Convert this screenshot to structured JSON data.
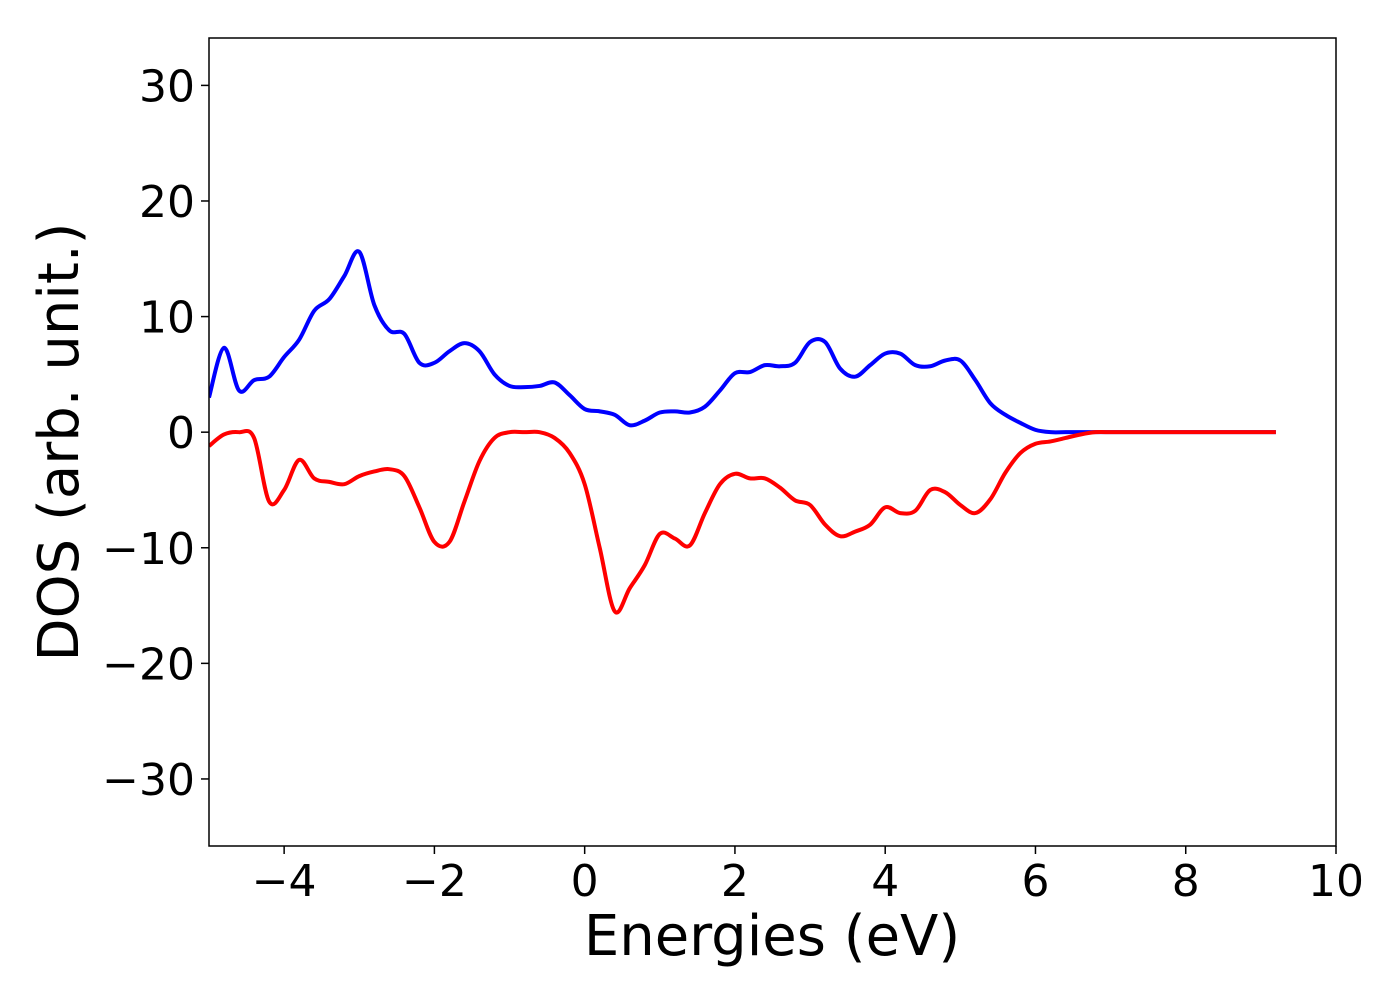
{
  "chart_data": {
    "type": "line",
    "x_label": "Energies (eV)",
    "y_label": "DOS (arb. unit.)",
    "x": [
      -5.0,
      -4.8,
      -4.6,
      -4.4,
      -4.2,
      -4.0,
      -3.8,
      -3.6,
      -3.4,
      -3.2,
      -3.0,
      -2.8,
      -2.6,
      -2.4,
      -2.2,
      -2.0,
      -1.8,
      -1.6,
      -1.4,
      -1.2,
      -1.0,
      -0.8,
      -0.6,
      -0.4,
      -0.2,
      0.0,
      0.2,
      0.4,
      0.6,
      0.8,
      1.0,
      1.2,
      1.4,
      1.6,
      1.8,
      2.0,
      2.2,
      2.4,
      2.6,
      2.8,
      3.0,
      3.2,
      3.4,
      3.6,
      3.8,
      4.0,
      4.2,
      4.4,
      4.6,
      4.8,
      5.0,
      5.2,
      5.4,
      5.6,
      5.8,
      6.0,
      6.2,
      6.4,
      6.6,
      6.8,
      7.0,
      7.2,
      7.4,
      7.6,
      7.8,
      8.0,
      8.2,
      8.4,
      8.6,
      8.8,
      9.0,
      9.2
    ],
    "series": [
      {
        "color": "#0000ff",
        "values": [
          3,
          7.3,
          3.6,
          4.5,
          4.8,
          6.5,
          8,
          10.5,
          11.5,
          13.5,
          15.6,
          11,
          8.8,
          8.5,
          6,
          6,
          7,
          7.7,
          7,
          5,
          4,
          3.9,
          4,
          4.3,
          3.2,
          2,
          1.8,
          1.5,
          0.6,
          1,
          1.7,
          1.8,
          1.7,
          2.2,
          3.6,
          5.1,
          5.2,
          5.8,
          5.7,
          6,
          7.8,
          7.8,
          5.5,
          4.8,
          5.8,
          6.8,
          6.8,
          5.8,
          5.7,
          6.2,
          6.2,
          4.5,
          2.5,
          1.5,
          0.8,
          0.2,
          0,
          0,
          0,
          0,
          0,
          0,
          0,
          0,
          0,
          0,
          0,
          0,
          0,
          0,
          0,
          0
        ]
      },
      {
        "color": "#ff0000",
        "values": [
          -1.2,
          -0.2,
          0,
          -0.5,
          -6,
          -5,
          -2.4,
          -4,
          -4.3,
          -4.5,
          -3.8,
          -3.4,
          -3.2,
          -3.8,
          -6.5,
          -9.5,
          -9.5,
          -6,
          -2.5,
          -0.5,
          0,
          0,
          0,
          -0.5,
          -1.8,
          -4.5,
          -10,
          -15.5,
          -13.5,
          -11.5,
          -8.8,
          -9.2,
          -9.8,
          -7,
          -4.5,
          -3.6,
          -4,
          -4,
          -4.8,
          -5.9,
          -6.3,
          -8,
          -9,
          -8.6,
          -8,
          -6.5,
          -7,
          -6.8,
          -5,
          -5.2,
          -6.3,
          -7,
          -5.8,
          -3.5,
          -1.8,
          -1,
          -0.8,
          -0.5,
          -0.2,
          0,
          0,
          0,
          0,
          0,
          0,
          0,
          0,
          0,
          0,
          0,
          0,
          0
        ]
      }
    ],
    "xlim": [
      -5,
      10
    ],
    "ylim": [
      -35.8,
      34.1
    ],
    "xticks": [
      {
        "value": -4,
        "label": "−4"
      },
      {
        "value": -2,
        "label": "−2"
      },
      0,
      2,
      4,
      6,
      8,
      10
    ],
    "yticks": [
      {
        "value": -30,
        "label": "−30"
      },
      {
        "value": -20,
        "label": "−20"
      },
      {
        "value": -10,
        "label": "−10"
      },
      0,
      10,
      20,
      30
    ]
  }
}
